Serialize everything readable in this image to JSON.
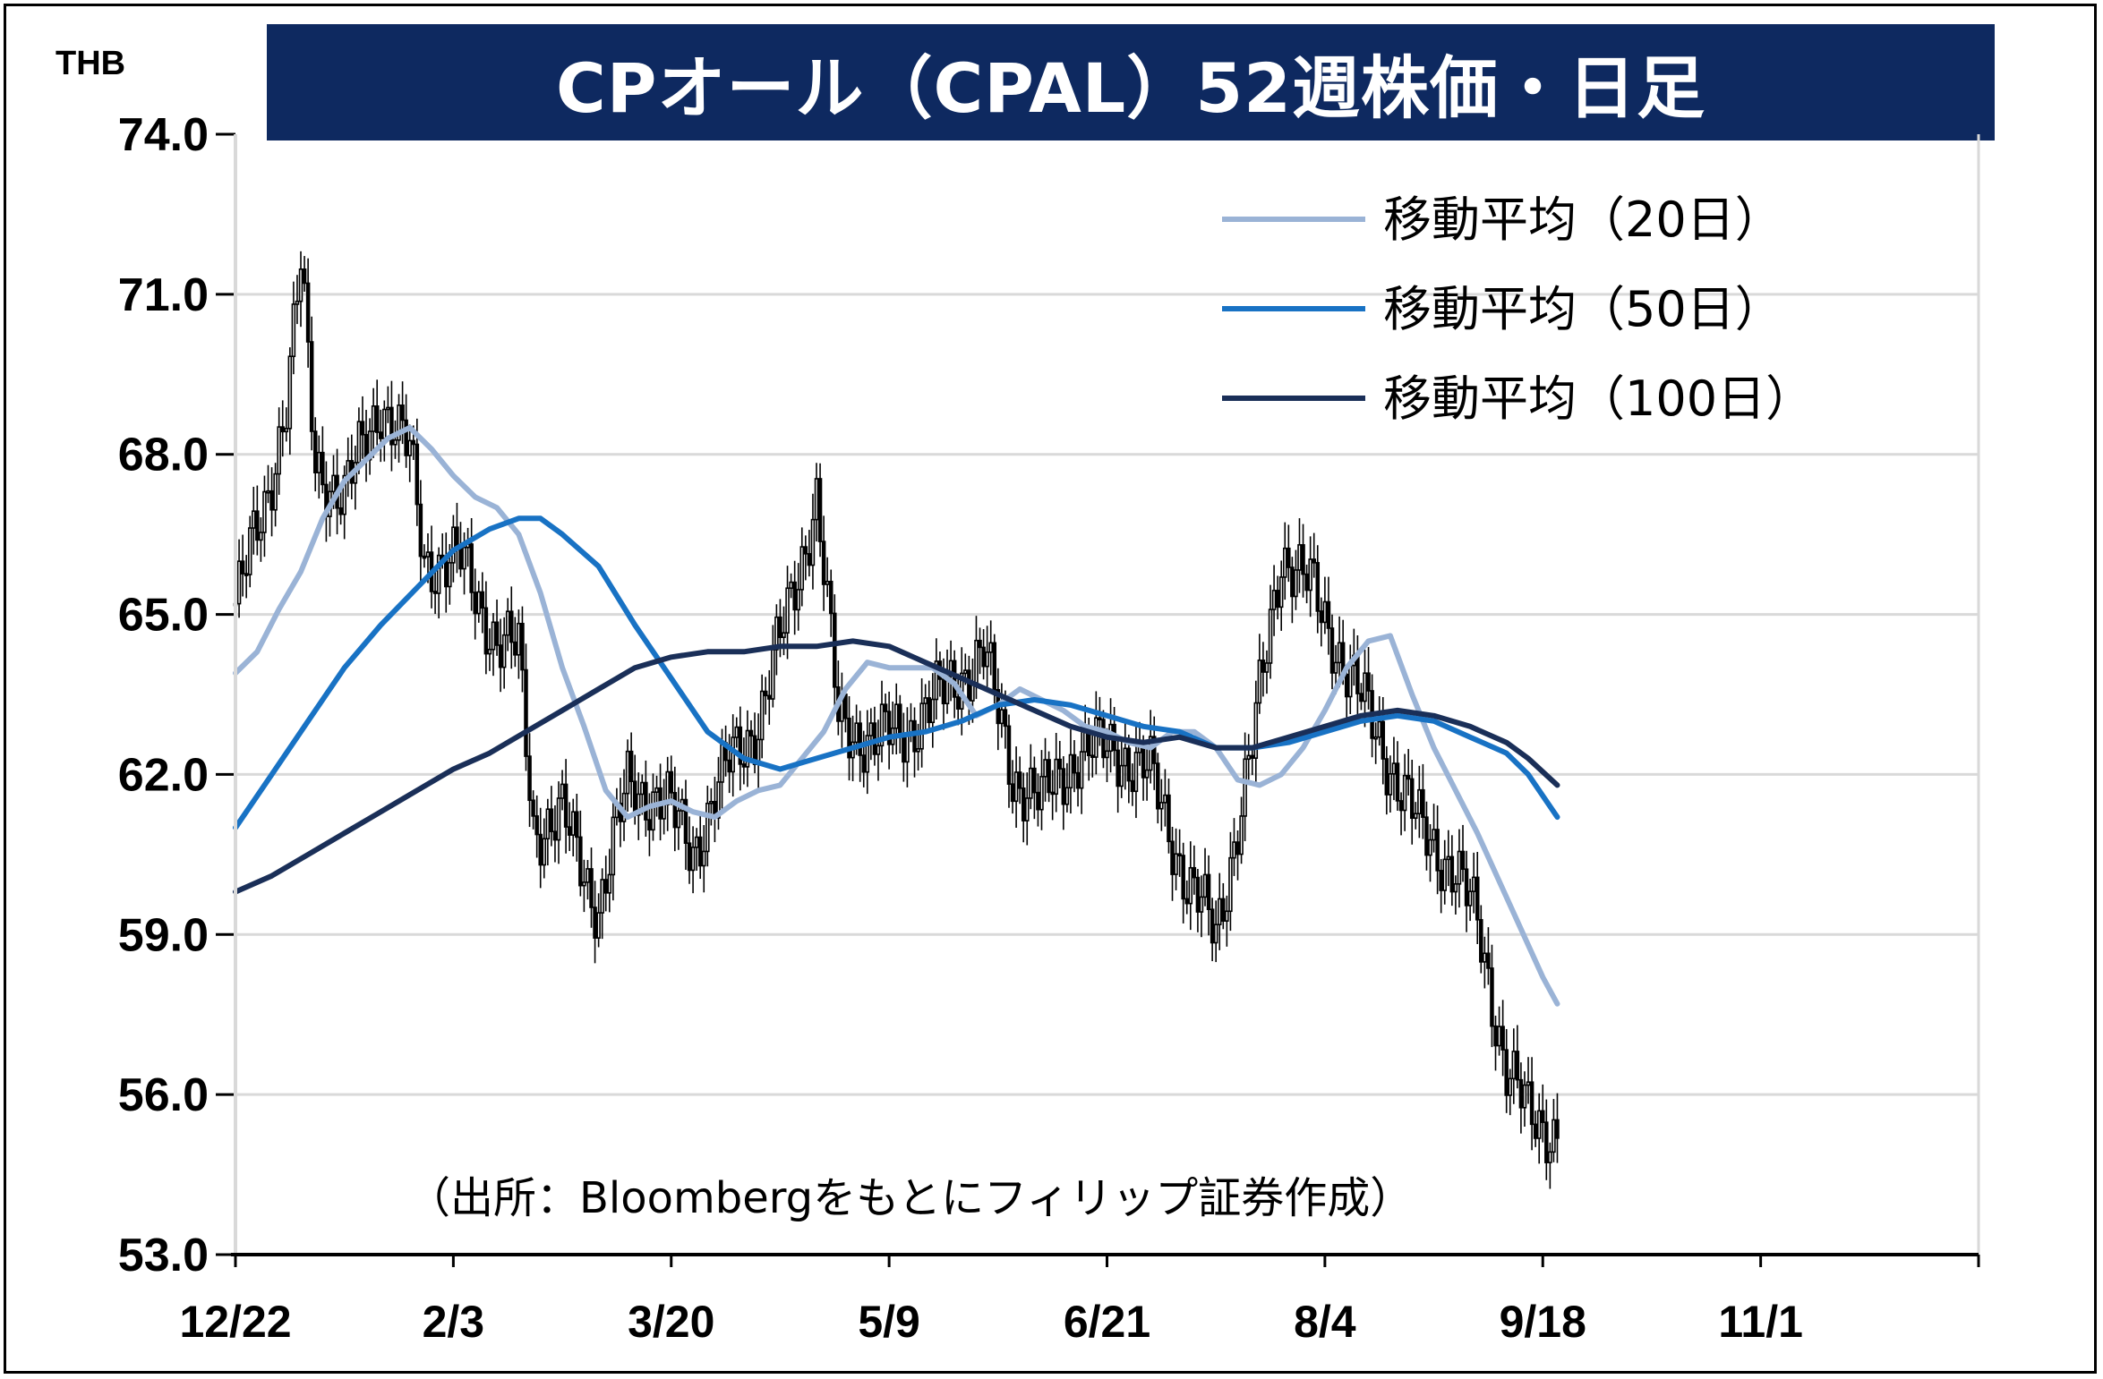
{
  "chart_data": {
    "type": "candlestick",
    "title": "CPオール（CPAL）52週株価・日足",
    "ylabel": "THB",
    "ylim": [
      53.0,
      74.0
    ],
    "yticks": [
      "74.0",
      "71.0",
      "68.0",
      "65.0",
      "62.0",
      "59.0",
      "56.0",
      "53.0"
    ],
    "xticks": [
      "12/22",
      "2/3",
      "3/20",
      "5/9",
      "6/21",
      "8/4",
      "9/18",
      "11/1"
    ],
    "grid": true,
    "legend_position": "top-right",
    "source": "（出所：Bloombergをもとにフィリップ証券作成）",
    "series": [
      {
        "name": "移動平均（20日）",
        "color": "#9ab3d6",
        "points": [
          [
            0,
            63.9
          ],
          [
            6,
            64.3
          ],
          [
            12,
            65.1
          ],
          [
            18,
            65.8
          ],
          [
            24,
            66.8
          ],
          [
            30,
            67.5
          ],
          [
            36,
            67.9
          ],
          [
            42,
            68.3
          ],
          [
            48,
            68.5
          ],
          [
            54,
            68.1
          ],
          [
            60,
            67.6
          ],
          [
            66,
            67.2
          ],
          [
            72,
            67.0
          ],
          [
            78,
            66.5
          ],
          [
            84,
            65.4
          ],
          [
            90,
            64.0
          ],
          [
            96,
            62.9
          ],
          [
            102,
            61.7
          ],
          [
            108,
            61.2
          ],
          [
            114,
            61.4
          ],
          [
            120,
            61.5
          ],
          [
            126,
            61.3
          ],
          [
            132,
            61.2
          ],
          [
            138,
            61.5
          ],
          [
            144,
            61.7
          ],
          [
            150,
            61.8
          ],
          [
            156,
            62.3
          ],
          [
            162,
            62.8
          ],
          [
            168,
            63.6
          ],
          [
            174,
            64.1
          ],
          [
            180,
            64.0
          ],
          [
            186,
            64.0
          ],
          [
            192,
            64.0
          ],
          [
            198,
            63.7
          ],
          [
            204,
            63.1
          ],
          [
            210,
            63.3
          ],
          [
            216,
            63.6
          ],
          [
            222,
            63.4
          ],
          [
            228,
            63.2
          ],
          [
            234,
            62.9
          ],
          [
            240,
            62.8
          ],
          [
            246,
            62.6
          ],
          [
            252,
            62.5
          ],
          [
            258,
            62.8
          ],
          [
            264,
            62.8
          ],
          [
            270,
            62.5
          ],
          [
            276,
            61.9
          ],
          [
            282,
            61.8
          ],
          [
            288,
            62.0
          ],
          [
            294,
            62.5
          ],
          [
            300,
            63.2
          ],
          [
            306,
            64.0
          ],
          [
            312,
            64.5
          ],
          [
            318,
            64.6
          ],
          [
            324,
            63.5
          ],
          [
            330,
            62.5
          ],
          [
            336,
            61.7
          ],
          [
            342,
            60.9
          ],
          [
            348,
            60.0
          ],
          [
            354,
            59.1
          ],
          [
            360,
            58.2
          ],
          [
            364,
            57.7
          ]
        ]
      },
      {
        "name": "移動平均（50日）",
        "color": "#1872c4",
        "points": [
          [
            0,
            61.0
          ],
          [
            10,
            62.0
          ],
          [
            20,
            63.0
          ],
          [
            30,
            64.0
          ],
          [
            40,
            64.8
          ],
          [
            50,
            65.5
          ],
          [
            60,
            66.2
          ],
          [
            70,
            66.6
          ],
          [
            78,
            66.8
          ],
          [
            84,
            66.8
          ],
          [
            90,
            66.5
          ],
          [
            100,
            65.9
          ],
          [
            110,
            64.8
          ],
          [
            120,
            63.8
          ],
          [
            130,
            62.8
          ],
          [
            140,
            62.3
          ],
          [
            150,
            62.1
          ],
          [
            160,
            62.3
          ],
          [
            170,
            62.5
          ],
          [
            180,
            62.7
          ],
          [
            190,
            62.8
          ],
          [
            200,
            63.0
          ],
          [
            210,
            63.3
          ],
          [
            220,
            63.4
          ],
          [
            230,
            63.3
          ],
          [
            240,
            63.1
          ],
          [
            250,
            62.9
          ],
          [
            260,
            62.8
          ],
          [
            270,
            62.5
          ],
          [
            280,
            62.5
          ],
          [
            290,
            62.6
          ],
          [
            300,
            62.8
          ],
          [
            310,
            63.0
          ],
          [
            320,
            63.1
          ],
          [
            330,
            63.0
          ],
          [
            340,
            62.7
          ],
          [
            350,
            62.4
          ],
          [
            356,
            62.0
          ],
          [
            364,
            61.2
          ]
        ]
      },
      {
        "name": "移動平均（100日）",
        "color": "#1a2f58",
        "points": [
          [
            0,
            59.8
          ],
          [
            10,
            60.1
          ],
          [
            20,
            60.5
          ],
          [
            30,
            60.9
          ],
          [
            40,
            61.3
          ],
          [
            50,
            61.7
          ],
          [
            60,
            62.1
          ],
          [
            70,
            62.4
          ],
          [
            80,
            62.8
          ],
          [
            90,
            63.2
          ],
          [
            100,
            63.6
          ],
          [
            110,
            64.0
          ],
          [
            120,
            64.2
          ],
          [
            130,
            64.3
          ],
          [
            140,
            64.3
          ],
          [
            150,
            64.4
          ],
          [
            160,
            64.4
          ],
          [
            170,
            64.5
          ],
          [
            180,
            64.4
          ],
          [
            190,
            64.1
          ],
          [
            200,
            63.8
          ],
          [
            210,
            63.5
          ],
          [
            220,
            63.2
          ],
          [
            230,
            62.9
          ],
          [
            240,
            62.7
          ],
          [
            250,
            62.6
          ],
          [
            260,
            62.7
          ],
          [
            270,
            62.5
          ],
          [
            280,
            62.5
          ],
          [
            290,
            62.7
          ],
          [
            300,
            62.9
          ],
          [
            310,
            63.1
          ],
          [
            320,
            63.2
          ],
          [
            330,
            63.1
          ],
          [
            340,
            62.9
          ],
          [
            350,
            62.6
          ],
          [
            356,
            62.3
          ],
          [
            364,
            61.8
          ]
        ]
      }
    ]
  }
}
